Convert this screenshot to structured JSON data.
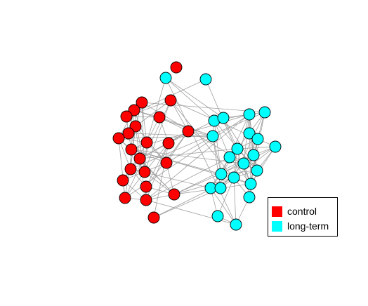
{
  "legend": {
    "items": [
      {
        "label": "control",
        "color": "#FF0000"
      },
      {
        "label": "long-term",
        "color": "#00FFFF"
      }
    ]
  },
  "style": {
    "edge_color": "#A0A0A0",
    "node_stroke": "#000000"
  }
}
